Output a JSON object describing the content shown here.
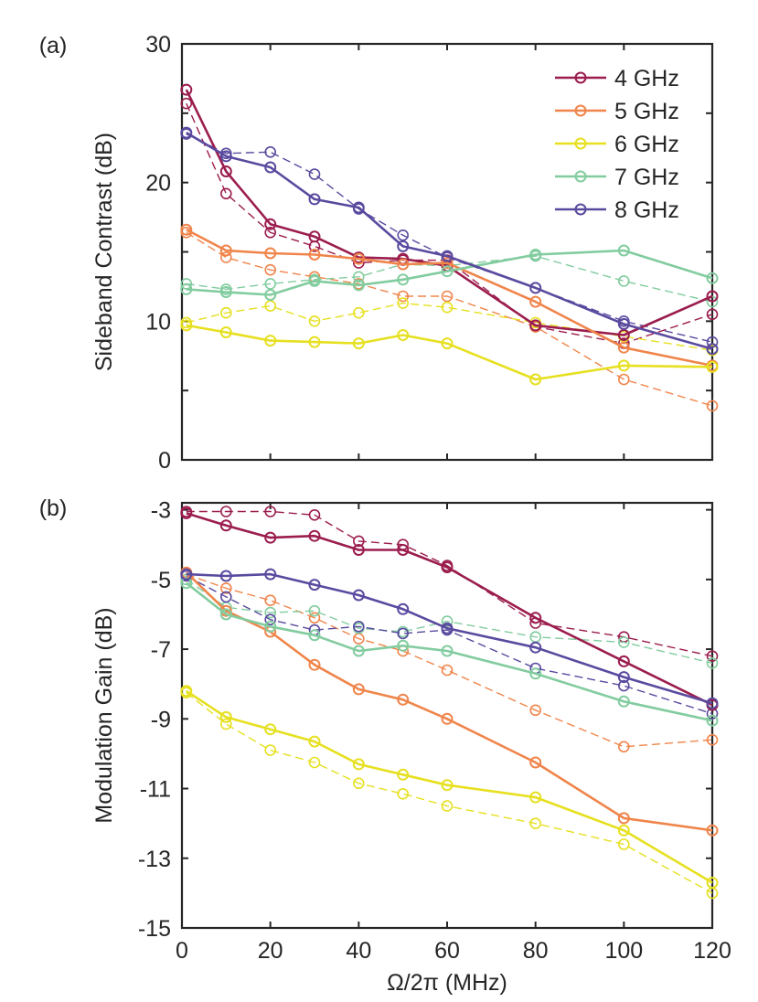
{
  "chart_data": [
    {
      "type": "line",
      "panel_label": "(a)",
      "title": "",
      "xlabel": "",
      "ylabel": "Sideband Contrast (dB)",
      "xlim": [
        0,
        120
      ],
      "ylim": [
        0,
        30
      ],
      "xticks": [
        0,
        20,
        40,
        60,
        80,
        100,
        120
      ],
      "xtick_labels": [
        "",
        "",
        "",
        "",
        "",
        "",
        ""
      ],
      "yticks": [
        0,
        5,
        10,
        15,
        20,
        25,
        30
      ],
      "ytick_labels": [
        "0",
        "",
        "10",
        "",
        "20",
        "",
        "30"
      ],
      "x": [
        1,
        10,
        20,
        30,
        40,
        50,
        60,
        80,
        100,
        120
      ],
      "legend_position": "top-right",
      "series": [
        {
          "name": "4 GHz",
          "color": "#9b1d4e",
          "style": "solid",
          "values": [
            26.7,
            20.8,
            17.0,
            16.1,
            14.6,
            14.5,
            14.0,
            9.7,
            9.0,
            11.8
          ]
        },
        {
          "name": "4 GHz",
          "color": "#9b1d4e",
          "style": "dashed",
          "values": [
            25.7,
            19.2,
            16.4,
            15.4,
            14.2,
            14.4,
            14.4,
            9.6,
            8.4,
            10.5
          ]
        },
        {
          "name": "5 GHz",
          "color": "#f0854b",
          "style": "solid",
          "values": [
            16.6,
            15.1,
            14.9,
            14.8,
            14.5,
            14.1,
            14.2,
            11.4,
            8.1,
            6.8
          ]
        },
        {
          "name": "5 GHz",
          "color": "#f0854b",
          "style": "dashed",
          "values": [
            16.4,
            14.6,
            13.7,
            13.2,
            12.7,
            11.8,
            11.8,
            9.6,
            5.8,
            3.9
          ]
        },
        {
          "name": "6 GHz",
          "color": "#e6e020",
          "style": "solid",
          "values": [
            9.7,
            9.2,
            8.6,
            8.5,
            8.4,
            9.0,
            8.4,
            5.8,
            6.8,
            6.7
          ]
        },
        {
          "name": "6 GHz",
          "color": "#e6e020",
          "style": "dashed",
          "values": [
            9.9,
            10.6,
            11.1,
            10.0,
            10.6,
            11.3,
            11.0,
            9.9,
            8.9,
            7.9
          ]
        },
        {
          "name": "7 GHz",
          "color": "#82cc9f",
          "style": "solid",
          "values": [
            12.3,
            12.1,
            11.9,
            12.9,
            12.6,
            13.0,
            13.6,
            14.8,
            15.1,
            13.1
          ]
        },
        {
          "name": "7 GHz",
          "color": "#82cc9f",
          "style": "dashed",
          "values": [
            12.7,
            12.3,
            12.7,
            13.0,
            13.2,
            14.1,
            14.0,
            14.7,
            12.9,
            11.4
          ]
        },
        {
          "name": "8 GHz",
          "color": "#5a4a9f",
          "style": "solid",
          "values": [
            23.6,
            21.9,
            21.1,
            18.8,
            18.2,
            15.4,
            14.7,
            12.4,
            9.8,
            8.0
          ]
        },
        {
          "name": "8 GHz",
          "color": "#5a4a9f",
          "style": "dashed",
          "values": [
            23.5,
            22.1,
            22.2,
            20.6,
            18.1,
            16.2,
            14.6,
            12.4,
            10.0,
            8.5
          ]
        }
      ]
    },
    {
      "type": "line",
      "panel_label": "(b)",
      "title": "",
      "xlabel": "Ω/2π (MHz)",
      "ylabel": "Modulation Gain (dB)",
      "xlim": [
        0,
        120
      ],
      "ylim": [
        -15,
        -2.8
      ],
      "xticks": [
        0,
        20,
        40,
        60,
        80,
        100,
        120
      ],
      "xtick_labels": [
        "0",
        "20",
        "40",
        "60",
        "80",
        "100",
        "120"
      ],
      "yticks": [
        -15,
        -13,
        -11,
        -9,
        -7,
        -5,
        -3
      ],
      "ytick_labels": [
        "-15",
        "-13",
        "-11",
        "-9",
        "-7",
        "-5",
        "-3"
      ],
      "x": [
        1,
        10,
        20,
        30,
        40,
        50,
        60,
        80,
        100,
        120
      ],
      "series": [
        {
          "name": "4 GHz",
          "color": "#9b1d4e",
          "style": "solid",
          "values": [
            -3.1,
            -3.45,
            -3.8,
            -3.75,
            -4.15,
            -4.15,
            -4.65,
            -6.1,
            -7.35,
            -8.6
          ]
        },
        {
          "name": "4 GHz",
          "color": "#9b1d4e",
          "style": "dashed",
          "values": [
            -3.05,
            -3.05,
            -3.05,
            -3.15,
            -3.9,
            -4.0,
            -4.6,
            -6.25,
            -6.65,
            -7.2
          ]
        },
        {
          "name": "5 GHz",
          "color": "#f0854b",
          "style": "solid",
          "values": [
            -4.8,
            -5.9,
            -6.5,
            -7.45,
            -8.15,
            -8.45,
            -9.0,
            -10.25,
            -11.85,
            -12.2
          ]
        },
        {
          "name": "5 GHz",
          "color": "#f0854b",
          "style": "dashed",
          "values": [
            -4.85,
            -5.25,
            -5.6,
            -6.1,
            -6.7,
            -7.05,
            -7.6,
            -8.75,
            -9.8,
            -9.6
          ]
        },
        {
          "name": "6 GHz",
          "color": "#e6e020",
          "style": "solid",
          "values": [
            -8.2,
            -8.95,
            -9.3,
            -9.65,
            -10.3,
            -10.6,
            -10.9,
            -11.25,
            -12.2,
            -13.7
          ]
        },
        {
          "name": "6 GHz",
          "color": "#e6e020",
          "style": "dashed",
          "values": [
            -8.25,
            -9.15,
            -9.9,
            -10.25,
            -10.85,
            -11.15,
            -11.5,
            -12.0,
            -12.6,
            -14.0
          ]
        },
        {
          "name": "7 GHz",
          "color": "#82cc9f",
          "style": "solid",
          "values": [
            -5.1,
            -6.0,
            -6.35,
            -6.6,
            -7.05,
            -6.9,
            -7.05,
            -7.7,
            -8.5,
            -9.05
          ]
        },
        {
          "name": "7 GHz",
          "color": "#82cc9f",
          "style": "dashed",
          "values": [
            -5.0,
            -5.8,
            -5.95,
            -5.9,
            -6.4,
            -6.5,
            -6.2,
            -6.65,
            -6.8,
            -7.4
          ]
        },
        {
          "name": "8 GHz",
          "color": "#5a4a9f",
          "style": "solid",
          "values": [
            -4.85,
            -4.9,
            -4.85,
            -5.15,
            -5.45,
            -5.85,
            -6.4,
            -6.95,
            -7.8,
            -8.55
          ]
        },
        {
          "name": "8 GHz",
          "color": "#5a4a9f",
          "style": "dashed",
          "values": [
            -4.9,
            -5.5,
            -6.15,
            -6.45,
            -6.35,
            -6.55,
            -6.45,
            -7.55,
            -8.05,
            -8.85
          ]
        }
      ]
    }
  ]
}
